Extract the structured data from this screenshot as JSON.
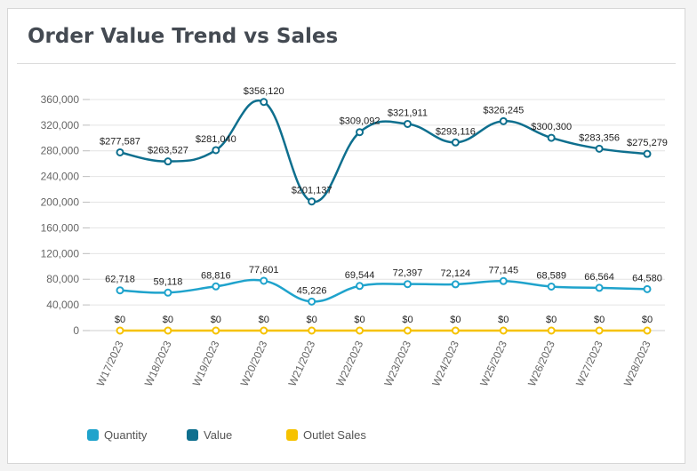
{
  "card": {
    "title": "Order Value Trend vs Sales"
  },
  "chart_data": {
    "type": "line",
    "categories": [
      "W17/2023",
      "W18/2023",
      "W19/2023",
      "W20/2023",
      "W21/2023",
      "W22/2023",
      "W23/2023",
      "W24/2023",
      "W25/2023",
      "W26/2023",
      "W27/2023",
      "W28/2023"
    ],
    "ylim": [
      0,
      380000
    ],
    "yticks": [
      0,
      40000,
      80000,
      120000,
      160000,
      200000,
      240000,
      280000,
      320000,
      360000
    ],
    "ytick_labels": [
      "0",
      "40,000",
      "80,000",
      "120,000",
      "160,000",
      "200,000",
      "240,000",
      "280,000",
      "320,000",
      "360,000"
    ],
    "grid": true,
    "legend_position": "bottom-left",
    "series": [
      {
        "name": "Quantity",
        "color": "#1fa3cc",
        "values": [
          62718,
          59118,
          68816,
          77601,
          45226,
          69544,
          72397,
          72124,
          77145,
          68589,
          66564,
          64580
        ],
        "labels": [
          "62,718",
          "59,118",
          "68,816",
          "77,601",
          "45,226",
          "69,544",
          "72,397",
          "72,124",
          "77,145",
          "68,589",
          "66,564",
          "64,580"
        ]
      },
      {
        "name": "Value",
        "color": "#0e6f8e",
        "values": [
          277587,
          263527,
          281040,
          356120,
          201137,
          309092,
          321911,
          293116,
          326245,
          300300,
          283356,
          275279
        ],
        "labels": [
          "$277,587",
          "$263,527",
          "$281,040",
          "$356,120",
          "$201,137",
          "$309,092",
          "$321,911",
          "$293,116",
          "$326,245",
          "$300,300",
          "$283,356",
          "$275,279"
        ]
      },
      {
        "name": "Outlet Sales",
        "color": "#f6c200",
        "values": [
          0,
          0,
          0,
          0,
          0,
          0,
          0,
          0,
          0,
          0,
          0,
          0
        ],
        "labels": [
          "$0",
          "$0",
          "$0",
          "$0",
          "$0",
          "$0",
          "$0",
          "$0",
          "$0",
          "$0",
          "$0",
          "$0"
        ]
      }
    ]
  }
}
